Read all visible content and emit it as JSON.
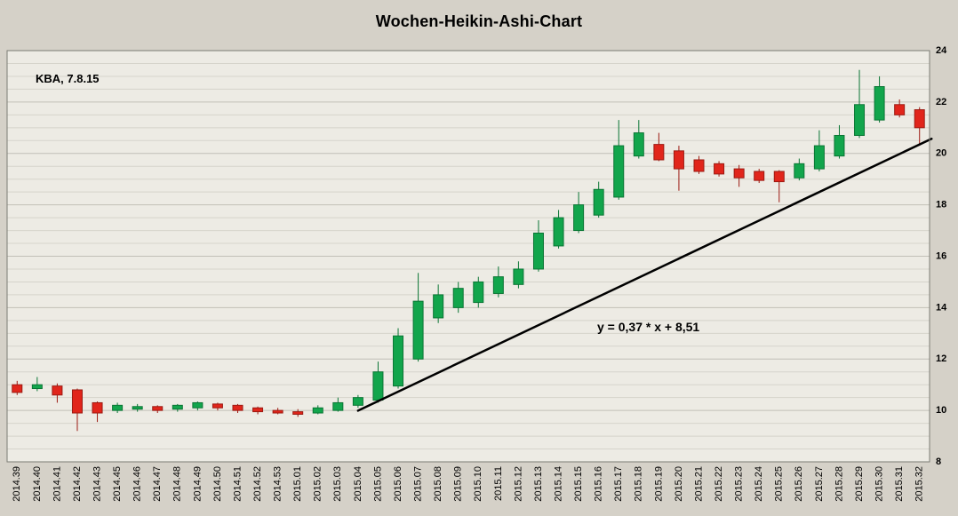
{
  "window": {
    "bg": "#d5d1c8"
  },
  "chart": {
    "title": "Wochen-Heikin-Ashi-Chart",
    "instrument_label": "KBA, 7.8.15",
    "trendline_equation": "y = 0,37 * x + 8,51"
  },
  "chart_data": {
    "type": "candlestick",
    "subtype": "weekly-heikin-ashi",
    "title": "Wochen-Heikin-Ashi-Chart",
    "instrument": "KBA, 7.8.15",
    "ylim": [
      8,
      24
    ],
    "y_ticks": [
      8,
      10,
      12,
      14,
      16,
      18,
      20,
      22,
      24
    ],
    "grid_step": 0.5,
    "grid_on": true,
    "legend": "none",
    "colors": {
      "up": "#12a54c",
      "up_stroke": "#0a7534",
      "down": "#e1251b",
      "down_stroke": "#9c1a12",
      "trend": "#000000",
      "plot_bg": "#edebe4",
      "grid_minor": "#d6d4cb",
      "grid_major": "#c2c0b7",
      "outer_bg": "#d5d1c8",
      "border": "#7c7c74",
      "text": "#000000"
    },
    "columns": [
      "week",
      "open",
      "high",
      "low",
      "close"
    ],
    "candles": [
      [
        "2014.39",
        11.0,
        11.15,
        10.6,
        10.7
      ],
      [
        "2014.40",
        10.85,
        11.3,
        10.75,
        11.0
      ],
      [
        "2014.41",
        10.95,
        11.05,
        10.3,
        10.6
      ],
      [
        "2014.42",
        10.8,
        10.85,
        9.2,
        9.9
      ],
      [
        "2014.43",
        10.3,
        10.35,
        9.55,
        9.9
      ],
      [
        "2014.45",
        10.0,
        10.3,
        9.9,
        10.2
      ],
      [
        "2014.46",
        10.05,
        10.25,
        9.95,
        10.15
      ],
      [
        "2014.47",
        10.15,
        10.2,
        9.9,
        10.0
      ],
      [
        "2014.48",
        10.05,
        10.25,
        9.95,
        10.2
      ],
      [
        "2014.49",
        10.1,
        10.35,
        10.0,
        10.3
      ],
      [
        "2014.50",
        10.25,
        10.3,
        10.0,
        10.1
      ],
      [
        "2014.51",
        10.2,
        10.25,
        9.9,
        10.0
      ],
      [
        "2014.52",
        10.1,
        10.15,
        9.85,
        9.95
      ],
      [
        "2014.53",
        10.0,
        10.1,
        9.85,
        9.9
      ],
      [
        "2015.01",
        9.95,
        10.05,
        9.75,
        9.85
      ],
      [
        "2015.02",
        9.9,
        10.2,
        9.85,
        10.1
      ],
      [
        "2015.03",
        10.0,
        10.5,
        9.95,
        10.3
      ],
      [
        "2015.04",
        10.2,
        10.6,
        10.1,
        10.5
      ],
      [
        "2015.05",
        10.4,
        11.9,
        10.3,
        11.5
      ],
      [
        "2015.06",
        10.95,
        13.2,
        10.85,
        12.9
      ],
      [
        "2015.07",
        12.0,
        15.35,
        11.9,
        14.25
      ],
      [
        "2015.08",
        13.6,
        14.9,
        13.4,
        14.5
      ],
      [
        "2015.09",
        14.0,
        15.0,
        13.8,
        14.75
      ],
      [
        "2015.10",
        14.2,
        15.2,
        14.0,
        15.0
      ],
      [
        "2015.11",
        14.55,
        15.6,
        14.4,
        15.2
      ],
      [
        "2015.12",
        14.9,
        15.8,
        14.75,
        15.5
      ],
      [
        "2015.13",
        15.5,
        17.4,
        15.4,
        16.9
      ],
      [
        "2015.14",
        16.4,
        17.8,
        16.3,
        17.5
      ],
      [
        "2015.15",
        17.0,
        18.5,
        16.9,
        18.0
      ],
      [
        "2015.16",
        17.6,
        18.9,
        17.5,
        18.6
      ],
      [
        "2015.17",
        18.3,
        21.3,
        18.2,
        20.3
      ],
      [
        "2015.18",
        19.9,
        21.3,
        19.8,
        20.8
      ],
      [
        "2015.19",
        20.35,
        20.8,
        19.7,
        19.75
      ],
      [
        "2015.20",
        20.1,
        20.3,
        18.55,
        19.4
      ],
      [
        "2015.21",
        19.75,
        19.9,
        19.2,
        19.3
      ],
      [
        "2015.22",
        19.6,
        19.7,
        19.1,
        19.2
      ],
      [
        "2015.23",
        19.4,
        19.55,
        18.7,
        19.05
      ],
      [
        "2015.24",
        19.3,
        19.4,
        18.85,
        18.95
      ],
      [
        "2015.25",
        19.3,
        19.35,
        18.1,
        18.9
      ],
      [
        "2015.26",
        19.05,
        19.8,
        18.95,
        19.6
      ],
      [
        "2015.27",
        19.4,
        20.9,
        19.3,
        20.3
      ],
      [
        "2015.28",
        19.9,
        21.1,
        19.8,
        20.7
      ],
      [
        "2015.29",
        20.7,
        23.25,
        20.6,
        21.9
      ],
      [
        "2015.30",
        21.3,
        23.0,
        21.2,
        22.6
      ],
      [
        "2015.31",
        21.9,
        22.1,
        21.4,
        21.5
      ],
      [
        "2015.32",
        21.7,
        21.8,
        20.3,
        21.0
      ]
    ],
    "trendline": {
      "equation": "y = 0,37 * x + 8,51",
      "slope": 0.37,
      "intercept": 8.51,
      "i1": 17,
      "v1": 9.99,
      "i2": 45.6,
      "v2": 20.57
    }
  }
}
